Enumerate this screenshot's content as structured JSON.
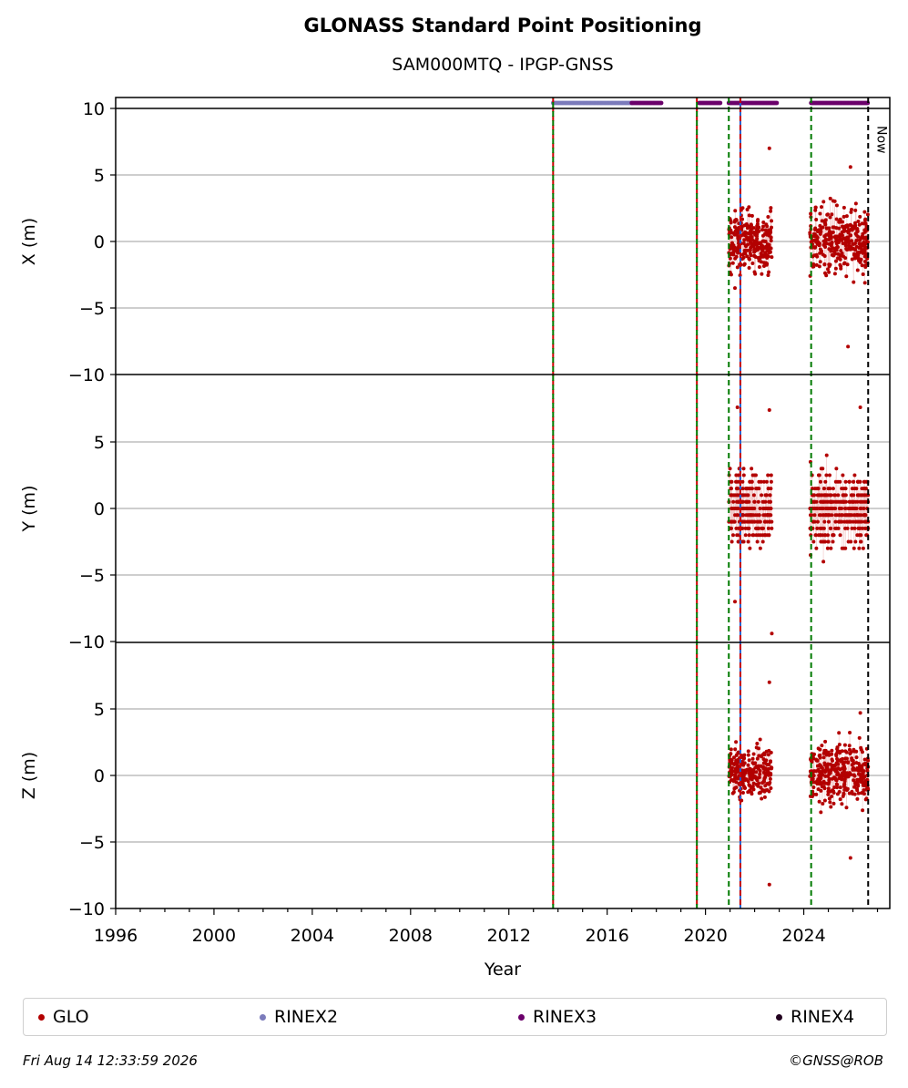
{
  "chart_data": {
    "type": "scatter",
    "title": "GLONASS Standard Point Positioning",
    "subtitle": "SAM000MTQ - IPGP-GNSS",
    "xlabel": "Year",
    "x_range": [
      1996,
      2027.5
    ],
    "x_ticks": [
      "1996",
      "2000",
      "2004",
      "2008",
      "2012",
      "2016",
      "2020",
      "2024"
    ],
    "panels": [
      {
        "ylabel": "X (m)",
        "ylim": [
          -10,
          10
        ],
        "y_ticks": [
          "10",
          "5",
          "0",
          "−5",
          "−10"
        ]
      },
      {
        "ylabel": "Y (m)",
        "ylim": [
          -10,
          10
        ],
        "y_ticks": [
          "5",
          "0",
          "−5",
          "−10"
        ]
      },
      {
        "ylabel": "Z (m)",
        "ylim": [
          -10,
          10
        ],
        "y_ticks": [
          "5",
          "0",
          "−5",
          "−10"
        ]
      }
    ],
    "grid": "horizontal",
    "vertical_markers": [
      {
        "year": 2013.8,
        "style": "dashed",
        "colors": [
          "#cc0000",
          "#007a00"
        ]
      },
      {
        "year": 2019.65,
        "style": "dashed",
        "colors": [
          "#cc0000",
          "#007a00"
        ]
      },
      {
        "year": 2020.95,
        "style": "dashed",
        "colors": [
          "#007a00"
        ]
      },
      {
        "year": 2021.42,
        "style": "solid",
        "colors": [
          "#1f5fd0"
        ]
      },
      {
        "year": 2021.42,
        "style": "dashed",
        "colors": [
          "#cc0000"
        ]
      },
      {
        "year": 2024.3,
        "style": "dashed",
        "colors": [
          "#007a00"
        ]
      },
      {
        "year": 2026.62,
        "style": "dashed",
        "colors": [
          "#000000"
        ],
        "label": "Now"
      }
    ],
    "rinex_availability": [
      {
        "series": "RINEX2",
        "from": 2013.8,
        "to": 2017.0
      },
      {
        "series": "RINEX3",
        "from": 2017.0,
        "to": 2018.2
      },
      {
        "series": "RINEX3",
        "from": 2019.75,
        "to": 2020.6
      },
      {
        "series": "RINEX3",
        "from": 2020.95,
        "to": 2022.9
      },
      {
        "series": "RINEX3",
        "from": 2024.3,
        "to": 2026.62
      }
    ],
    "glo_clusters": [
      {
        "panel": 0,
        "from": 2020.95,
        "to": 2022.7,
        "center": 0.0,
        "spread": 1.9,
        "n": 260
      },
      {
        "panel": 0,
        "from": 2024.25,
        "to": 2026.62,
        "center": 0.0,
        "spread": 2.1,
        "n": 340
      },
      {
        "panel": 1,
        "from": 2020.95,
        "to": 2022.7,
        "center": 0.0,
        "spread": 2.2,
        "n": 260
      },
      {
        "panel": 1,
        "from": 2024.25,
        "to": 2026.62,
        "center": 0.0,
        "spread": 2.5,
        "n": 340
      },
      {
        "panel": 2,
        "from": 2020.95,
        "to": 2022.7,
        "center": 0.3,
        "spread": 1.5,
        "n": 260
      },
      {
        "panel": 2,
        "from": 2024.25,
        "to": 2026.62,
        "center": 0.1,
        "spread": 1.9,
        "n": 340
      }
    ],
    "glo_outliers": [
      {
        "panel": 0,
        "x": 2022.6,
        "y": 7.0
      },
      {
        "panel": 0,
        "x": 2025.8,
        "y": -7.9
      },
      {
        "panel": 0,
        "x": 2025.9,
        "y": 5.6
      },
      {
        "panel": 0,
        "x": 2021.2,
        "y": -3.5
      },
      {
        "panel": 1,
        "x": 2021.3,
        "y": 7.6
      },
      {
        "panel": 1,
        "x": 2022.6,
        "y": 7.4
      },
      {
        "panel": 1,
        "x": 2022.7,
        "y": -9.4
      },
      {
        "panel": 1,
        "x": 2021.2,
        "y": -7.0
      },
      {
        "panel": 1,
        "x": 2026.3,
        "y": 7.6
      },
      {
        "panel": 2,
        "x": 2022.6,
        "y": 7.0
      },
      {
        "panel": 2,
        "x": 2022.6,
        "y": -8.2
      },
      {
        "panel": 2,
        "x": 2025.9,
        "y": -6.2
      },
      {
        "panel": 2,
        "x": 2026.3,
        "y": 4.7
      }
    ],
    "legend": [
      {
        "label": "GLO",
        "color": "#b30000"
      },
      {
        "label": "RINEX2",
        "color": "#7b7bbb"
      },
      {
        "label": "RINEX3",
        "color": "#6b006b"
      },
      {
        "label": "RINEX4",
        "color": "#22001f"
      }
    ]
  },
  "footer": {
    "timestamp": "Fri Aug 14 12:33:59 2026",
    "credit": "©GNSS@ROB"
  }
}
